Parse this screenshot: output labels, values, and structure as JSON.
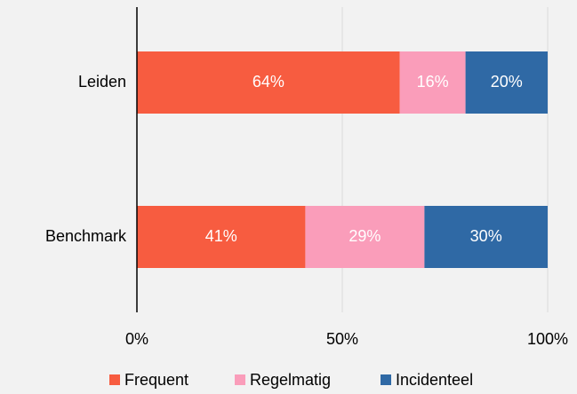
{
  "chart_data": {
    "type": "stacked-barh",
    "categories": [
      "Leiden",
      "Benchmark"
    ],
    "series": [
      {
        "name": "Frequent",
        "color": "#f75c40",
        "values": [
          64,
          41
        ],
        "value_labels": [
          "64%",
          "41%"
        ]
      },
      {
        "name": "Regelmatig",
        "color": "#fa9dba",
        "values": [
          16,
          29
        ],
        "value_labels": [
          "16%",
          "29%"
        ]
      },
      {
        "name": "Incidenteel",
        "color": "#2f69a5",
        "values": [
          20,
          30
        ],
        "value_labels": [
          "20%",
          "30%"
        ]
      }
    ],
    "xlim": [
      0,
      100
    ],
    "xticks": [
      {
        "value": 0,
        "label": "0%"
      },
      {
        "value": 50,
        "label": "50%"
      },
      {
        "value": 100,
        "label": "100%"
      }
    ],
    "grid": true,
    "legend": "bottom"
  }
}
